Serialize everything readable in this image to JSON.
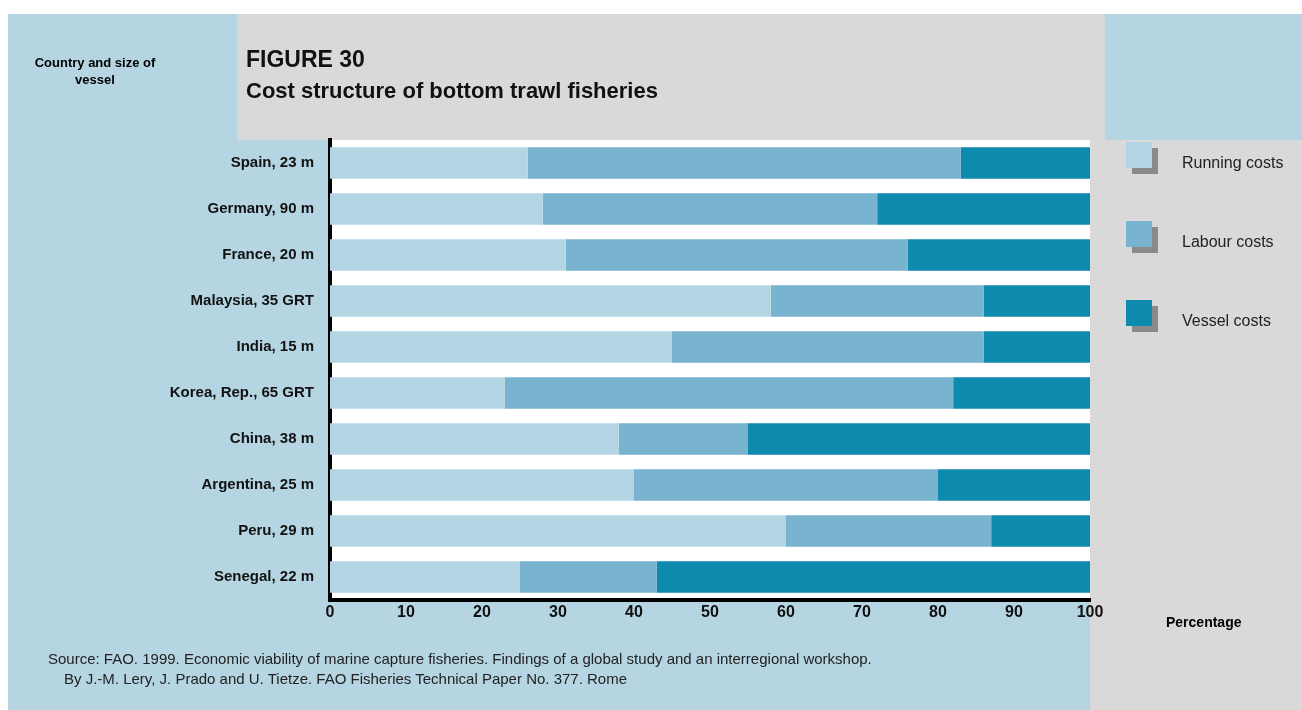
{
  "chart_data": {
    "type": "bar",
    "orientation": "horizontal",
    "stacked": true,
    "title": "FIGURE 30",
    "subtitle": "Cost structure of bottom trawl fisheries",
    "ylabel": "Country and size of vessel",
    "xlabel": "Percentage",
    "categories": [
      "Spain, 23 m",
      "Germany, 90 m",
      "France, 20 m",
      "Malaysia, 35 GRT",
      "India, 15 m",
      "Korea, Rep., 65 GRT",
      "China, 38 m",
      "Argentina, 25 m",
      "Peru, 29 m",
      "Senegal, 22 m"
    ],
    "series": [
      {
        "name": "Running costs",
        "color": "#b3d4e3",
        "values": [
          26,
          28,
          31,
          58,
          45,
          23,
          38,
          40,
          60,
          25
        ]
      },
      {
        "name": "Labour costs",
        "color": "#78b3cf",
        "values": [
          57,
          44,
          45,
          28,
          41,
          59,
          17,
          40,
          27,
          18
        ]
      },
      {
        "name": "Vessel costs",
        "color": "#0e8aae",
        "values": [
          17,
          28,
          24,
          14,
          14,
          18,
          45,
          20,
          13,
          57
        ]
      }
    ],
    "xlim": [
      0,
      100
    ],
    "xticks": [
      0,
      10,
      20,
      30,
      40,
      50,
      60,
      70,
      80,
      90,
      100
    ],
    "grid": false,
    "legend": "right",
    "annotations": [
      "Source: FAO. 1999. Economic viability of marine capture fisheries. Findings of a global study and an interregional workshop.",
      "By J.-M. Lery, J. Prado and U. Tietze. FAO Fisheries Technical Paper No. 377. Rome"
    ]
  }
}
